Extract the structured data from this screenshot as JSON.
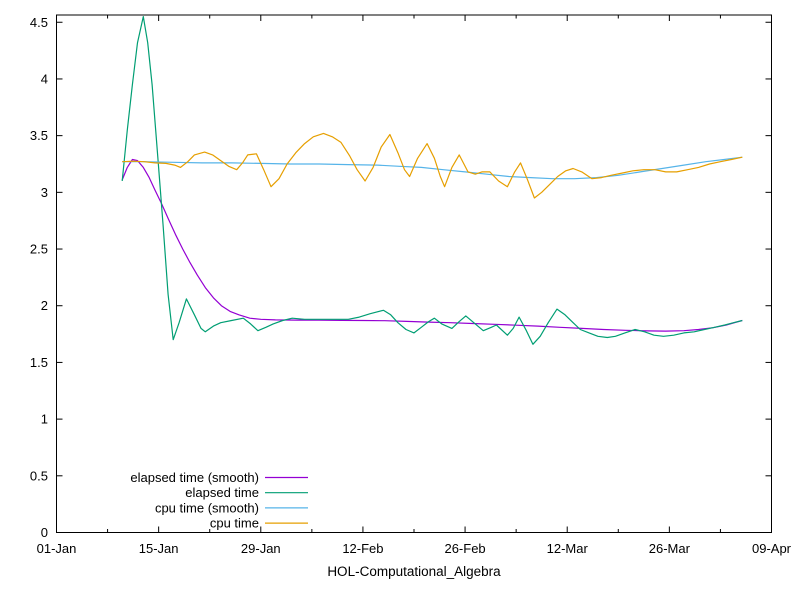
{
  "window": {
    "background": "#ffffff",
    "axis_color": "#000000",
    "text_color": "#000000"
  },
  "chart_data": {
    "type": "line",
    "title": "HOL-Computational_Algebra",
    "title_position": "bottom-center",
    "grid": "off",
    "legend": {
      "position": "inside-bottom-left",
      "entries": [
        "elapsed time (smooth)",
        "elapsed time",
        "cpu time (smooth)",
        "cpu time"
      ]
    },
    "x_axis": {
      "label": "",
      "range_days": [
        0,
        98
      ],
      "tick_labels": [
        "01-Jan",
        "15-Jan",
        "29-Jan",
        "12-Feb",
        "26-Feb",
        "12-Mar",
        "26-Mar",
        "09-Apr"
      ],
      "tick_days": [
        0,
        14,
        28,
        42,
        56,
        70,
        84,
        98
      ],
      "minor_tick_days": [
        7,
        21,
        35,
        49,
        63,
        77,
        91
      ]
    },
    "y_axis": {
      "label": "",
      "range": [
        0,
        4.564
      ],
      "tick_values": [
        0,
        0.5,
        1,
        1.5,
        2,
        2.5,
        3,
        3.5,
        4,
        4.5
      ],
      "tick_labels": [
        "0",
        "0.5",
        "1",
        "1.5",
        "2",
        "2.5",
        "3",
        "3.5",
        "4",
        "4.5"
      ]
    },
    "series": [
      {
        "name": "elapsed time (smooth)",
        "color": "#9400d3",
        "points": [
          [
            9,
            3.11
          ],
          [
            9.7,
            3.22
          ],
          [
            10.4,
            3.29
          ],
          [
            11.1,
            3.28
          ],
          [
            11.9,
            3.22
          ],
          [
            12.7,
            3.13
          ],
          [
            13.5,
            3.02
          ],
          [
            14.4,
            2.9
          ],
          [
            15.3,
            2.77
          ],
          [
            16.3,
            2.63
          ],
          [
            17.3,
            2.5
          ],
          [
            18.3,
            2.38
          ],
          [
            19.3,
            2.27
          ],
          [
            20.4,
            2.16
          ],
          [
            21.5,
            2.07
          ],
          [
            22.6,
            2.0
          ],
          [
            23.8,
            1.95
          ],
          [
            25,
            1.92
          ],
          [
            26.5,
            1.89
          ],
          [
            28,
            1.88
          ],
          [
            30,
            1.875
          ],
          [
            33,
            1.873
          ],
          [
            36,
            1.872
          ],
          [
            39,
            1.871
          ],
          [
            42,
            1.87
          ],
          [
            45,
            1.868
          ],
          [
            48,
            1.862
          ],
          [
            51,
            1.856
          ],
          [
            54,
            1.85
          ],
          [
            57,
            1.843
          ],
          [
            60,
            1.836
          ],
          [
            63,
            1.828
          ],
          [
            66,
            1.82
          ],
          [
            69,
            1.81
          ],
          [
            72,
            1.8
          ],
          [
            75,
            1.79
          ],
          [
            78,
            1.783
          ],
          [
            81,
            1.778
          ],
          [
            83.5,
            1.776
          ],
          [
            86,
            1.78
          ],
          [
            88,
            1.79
          ],
          [
            90,
            1.806
          ],
          [
            91.8,
            1.83
          ],
          [
            93,
            1.852
          ],
          [
            94,
            1.87
          ]
        ]
      },
      {
        "name": "elapsed time",
        "color": "#009e73",
        "points": [
          [
            9,
            3.1
          ],
          [
            9.7,
            3.55
          ],
          [
            10.4,
            3.95
          ],
          [
            11.1,
            4.32
          ],
          [
            11.9,
            4.55
          ],
          [
            12.5,
            4.32
          ],
          [
            13.1,
            3.95
          ],
          [
            13.9,
            3.3
          ],
          [
            14.6,
            2.72
          ],
          [
            15.3,
            2.1
          ],
          [
            16,
            1.7
          ],
          [
            16.8,
            1.85
          ],
          [
            17.8,
            2.06
          ],
          [
            18.9,
            1.92
          ],
          [
            19.8,
            1.8
          ],
          [
            20.4,
            1.77
          ],
          [
            21.5,
            1.82
          ],
          [
            22.5,
            1.85
          ],
          [
            24,
            1.87
          ],
          [
            25.6,
            1.89
          ],
          [
            26.6,
            1.84
          ],
          [
            27.6,
            1.78
          ],
          [
            28.7,
            1.81
          ],
          [
            29.7,
            1.84
          ],
          [
            31,
            1.87
          ],
          [
            32.3,
            1.89
          ],
          [
            34,
            1.88
          ],
          [
            36,
            1.88
          ],
          [
            38,
            1.88
          ],
          [
            40,
            1.88
          ],
          [
            41.5,
            1.9
          ],
          [
            43,
            1.93
          ],
          [
            44.8,
            1.96
          ],
          [
            45.8,
            1.92
          ],
          [
            46.8,
            1.85
          ],
          [
            47.9,
            1.79
          ],
          [
            49,
            1.76
          ],
          [
            50,
            1.81
          ],
          [
            51,
            1.86
          ],
          [
            51.8,
            1.89
          ],
          [
            52.8,
            1.84
          ],
          [
            54.2,
            1.8
          ],
          [
            55.2,
            1.86
          ],
          [
            56.1,
            1.91
          ],
          [
            57.2,
            1.85
          ],
          [
            58.5,
            1.78
          ],
          [
            59.6,
            1.81
          ],
          [
            60.3,
            1.83
          ],
          [
            61.8,
            1.74
          ],
          [
            62.6,
            1.8
          ],
          [
            63.4,
            1.9
          ],
          [
            64.4,
            1.78
          ],
          [
            65.3,
            1.66
          ],
          [
            66.3,
            1.73
          ],
          [
            67.4,
            1.85
          ],
          [
            68.6,
            1.97
          ],
          [
            69.7,
            1.92
          ],
          [
            70.8,
            1.85
          ],
          [
            71.8,
            1.79
          ],
          [
            73,
            1.76
          ],
          [
            74.2,
            1.73
          ],
          [
            75.5,
            1.72
          ],
          [
            76.6,
            1.73
          ],
          [
            77.9,
            1.76
          ],
          [
            79.3,
            1.79
          ],
          [
            80.6,
            1.77
          ],
          [
            81.9,
            1.74
          ],
          [
            83.2,
            1.73
          ],
          [
            84.6,
            1.74
          ],
          [
            86,
            1.76
          ],
          [
            87.4,
            1.77
          ],
          [
            88.8,
            1.79
          ],
          [
            90.2,
            1.81
          ],
          [
            91.6,
            1.83
          ],
          [
            92.8,
            1.85
          ],
          [
            94,
            1.87
          ]
        ]
      },
      {
        "name": "cpu time (smooth)",
        "color": "#56b4e9",
        "points": [
          [
            9,
            3.27
          ],
          [
            12,
            3.27
          ],
          [
            16,
            3.265
          ],
          [
            20,
            3.26
          ],
          [
            24,
            3.26
          ],
          [
            28,
            3.255
          ],
          [
            32,
            3.25
          ],
          [
            36,
            3.25
          ],
          [
            40,
            3.245
          ],
          [
            44,
            3.24
          ],
          [
            47,
            3.23
          ],
          [
            50,
            3.22
          ],
          [
            53,
            3.2
          ],
          [
            56,
            3.18
          ],
          [
            59,
            3.16
          ],
          [
            62,
            3.14
          ],
          [
            65,
            3.13
          ],
          [
            68,
            3.12
          ],
          [
            71,
            3.12
          ],
          [
            74,
            3.13
          ],
          [
            77,
            3.15
          ],
          [
            80,
            3.18
          ],
          [
            83,
            3.21
          ],
          [
            86,
            3.24
          ],
          [
            89,
            3.27
          ],
          [
            91.5,
            3.29
          ],
          [
            94,
            3.31
          ]
        ]
      },
      {
        "name": "cpu time",
        "color": "#e69f00",
        "points": [
          [
            9,
            3.27
          ],
          [
            10.5,
            3.275
          ],
          [
            12,
            3.27
          ],
          [
            13.5,
            3.26
          ],
          [
            15,
            3.255
          ],
          [
            16.2,
            3.24
          ],
          [
            17,
            3.22
          ],
          [
            18,
            3.27
          ],
          [
            18.9,
            3.33
          ],
          [
            20.3,
            3.355
          ],
          [
            21.4,
            3.33
          ],
          [
            22.5,
            3.28
          ],
          [
            23.6,
            3.23
          ],
          [
            24.7,
            3.2
          ],
          [
            25.5,
            3.26
          ],
          [
            26.2,
            3.33
          ],
          [
            27.4,
            3.34
          ],
          [
            28.4,
            3.2
          ],
          [
            29.4,
            3.05
          ],
          [
            30.5,
            3.12
          ],
          [
            31.6,
            3.25
          ],
          [
            32.8,
            3.35
          ],
          [
            34,
            3.43
          ],
          [
            35.2,
            3.49
          ],
          [
            36.6,
            3.52
          ],
          [
            37.8,
            3.49
          ],
          [
            39,
            3.44
          ],
          [
            40.2,
            3.32
          ],
          [
            41.2,
            3.2
          ],
          [
            42.3,
            3.1
          ],
          [
            43.4,
            3.22
          ],
          [
            44.5,
            3.4
          ],
          [
            45.7,
            3.51
          ],
          [
            46.8,
            3.35
          ],
          [
            47.7,
            3.2
          ],
          [
            48.4,
            3.14
          ],
          [
            49.5,
            3.3
          ],
          [
            50.8,
            3.43
          ],
          [
            51.8,
            3.3
          ],
          [
            52.6,
            3.14
          ],
          [
            53.2,
            3.05
          ],
          [
            54.2,
            3.22
          ],
          [
            55.2,
            3.33
          ],
          [
            56.4,
            3.18
          ],
          [
            57.4,
            3.16
          ],
          [
            58.3,
            3.18
          ],
          [
            59.4,
            3.18
          ],
          [
            60.6,
            3.1
          ],
          [
            61.8,
            3.05
          ],
          [
            62.8,
            3.18
          ],
          [
            63.6,
            3.26
          ],
          [
            64.5,
            3.12
          ],
          [
            65.5,
            2.95
          ],
          [
            66.5,
            3.0
          ],
          [
            67.6,
            3.07
          ],
          [
            68.7,
            3.14
          ],
          [
            69.8,
            3.19
          ],
          [
            70.8,
            3.21
          ],
          [
            72,
            3.18
          ],
          [
            73.4,
            3.12
          ],
          [
            74.7,
            3.13
          ],
          [
            76,
            3.15
          ],
          [
            77.5,
            3.17
          ],
          [
            79,
            3.19
          ],
          [
            80.5,
            3.2
          ],
          [
            82,
            3.2
          ],
          [
            83.5,
            3.18
          ],
          [
            85,
            3.18
          ],
          [
            86.5,
            3.2
          ],
          [
            88,
            3.22
          ],
          [
            89.5,
            3.25
          ],
          [
            91,
            3.27
          ],
          [
            92.5,
            3.29
          ],
          [
            94,
            3.31
          ]
        ]
      }
    ]
  }
}
